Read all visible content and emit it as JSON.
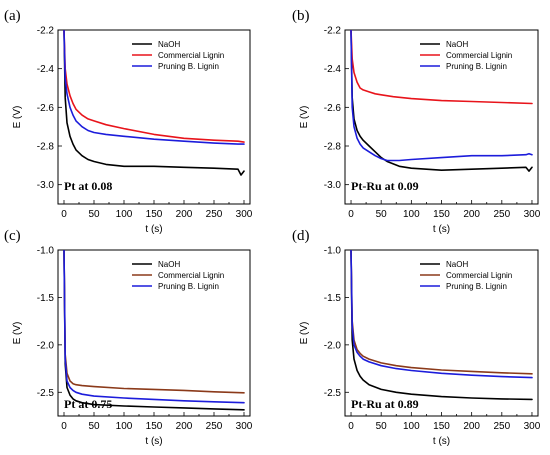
{
  "colors": {
    "NaOH": "#000000",
    "Commercial Lignin": "#e8141b",
    "Pruning B. Lignin": "#1c1cdb",
    "Commercial Lignin (c,d)": "#8b3a1a"
  },
  "chart_data": [
    {
      "panel": "(a)",
      "type": "line",
      "annotation": "Pt at 0.08",
      "xlabel": "t (s)",
      "ylabel": "E (V)",
      "xlim": [
        -10,
        310
      ],
      "ylim": [
        -3.1,
        -2.2
      ],
      "xticks": [
        0,
        50,
        100,
        150,
        200,
        250,
        300
      ],
      "yticks": [
        -3.0,
        -2.8,
        -2.6,
        -2.4,
        -2.2
      ],
      "ytick_labels": [
        "-3.0",
        "-2.8",
        "-2.6",
        "-2.4",
        "-2.2"
      ],
      "legend_position": "top-right",
      "series": [
        {
          "name": "NaOH",
          "color": "#000000",
          "x": [
            0,
            2,
            5,
            10,
            15,
            20,
            30,
            40,
            50,
            70,
            100,
            150,
            200,
            250,
            290,
            295,
            300
          ],
          "y": [
            -2.2,
            -2.55,
            -2.68,
            -2.75,
            -2.79,
            -2.82,
            -2.85,
            -2.87,
            -2.88,
            -2.895,
            -2.905,
            -2.905,
            -2.91,
            -2.915,
            -2.92,
            -2.95,
            -2.93
          ]
        },
        {
          "name": "Commercial Lignin",
          "color": "#e8141b",
          "x": [
            0,
            2,
            5,
            10,
            15,
            20,
            30,
            40,
            50,
            70,
            100,
            150,
            200,
            250,
            290,
            300
          ],
          "y": [
            -2.2,
            -2.4,
            -2.48,
            -2.54,
            -2.58,
            -2.61,
            -2.64,
            -2.66,
            -2.67,
            -2.69,
            -2.71,
            -2.74,
            -2.76,
            -2.77,
            -2.775,
            -2.78
          ]
        },
        {
          "name": "Pruning B. Lignin",
          "color": "#1c1cdb",
          "x": [
            0,
            2,
            5,
            10,
            15,
            20,
            30,
            40,
            50,
            70,
            100,
            150,
            200,
            250,
            290,
            300
          ],
          "y": [
            -2.2,
            -2.45,
            -2.53,
            -2.6,
            -2.64,
            -2.67,
            -2.7,
            -2.72,
            -2.73,
            -2.74,
            -2.75,
            -2.765,
            -2.775,
            -2.785,
            -2.79,
            -2.79
          ]
        }
      ]
    },
    {
      "panel": "(b)",
      "type": "line",
      "annotation": "Pt-Ru at 0.09",
      "xlabel": "t (s)",
      "ylabel": "E (V)",
      "xlim": [
        -10,
        310
      ],
      "ylim": [
        -3.1,
        -2.2
      ],
      "xticks": [
        0,
        50,
        100,
        150,
        200,
        250,
        300
      ],
      "yticks": [
        -3.0,
        -2.8,
        -2.6,
        -2.4,
        -2.2
      ],
      "ytick_labels": [
        "-3.0",
        "-2.8",
        "-2.6",
        "-2.4",
        "-2.2"
      ],
      "legend_position": "top-right",
      "series": [
        {
          "name": "NaOH",
          "color": "#000000",
          "x": [
            0,
            2,
            5,
            10,
            15,
            20,
            30,
            40,
            50,
            60,
            80,
            100,
            150,
            200,
            250,
            290,
            295,
            300
          ],
          "y": [
            -2.2,
            -2.55,
            -2.66,
            -2.72,
            -2.75,
            -2.77,
            -2.8,
            -2.83,
            -2.86,
            -2.88,
            -2.905,
            -2.915,
            -2.925,
            -2.92,
            -2.915,
            -2.91,
            -2.93,
            -2.91
          ]
        },
        {
          "name": "Commercial Lignin",
          "color": "#e8141b",
          "x": [
            0,
            2,
            5,
            10,
            15,
            20,
            30,
            40,
            50,
            70,
            100,
            150,
            200,
            250,
            300
          ],
          "y": [
            -2.2,
            -2.35,
            -2.42,
            -2.47,
            -2.5,
            -2.51,
            -2.52,
            -2.53,
            -2.535,
            -2.545,
            -2.555,
            -2.565,
            -2.57,
            -2.575,
            -2.58
          ]
        },
        {
          "name": "Pruning B. Lignin",
          "color": "#1c1cdb",
          "x": [
            0,
            2,
            5,
            10,
            15,
            20,
            30,
            40,
            50,
            60,
            80,
            100,
            150,
            200,
            250,
            290,
            295,
            300
          ],
          "y": [
            -2.2,
            -2.6,
            -2.7,
            -2.76,
            -2.79,
            -2.81,
            -2.83,
            -2.85,
            -2.865,
            -2.875,
            -2.875,
            -2.87,
            -2.86,
            -2.85,
            -2.85,
            -2.845,
            -2.84,
            -2.845
          ]
        }
      ]
    },
    {
      "panel": "(c)",
      "type": "line",
      "annotation": "Pt at 0.75",
      "xlabel": "t (s)",
      "ylabel": "E (V)",
      "xlim": [
        -10,
        310
      ],
      "ylim": [
        -2.75,
        -1.0
      ],
      "xticks": [
        0,
        50,
        100,
        150,
        200,
        250,
        300
      ],
      "yticks": [
        -2.5,
        -2.0,
        -1.5,
        -1.0
      ],
      "ytick_labels": [
        "-2.5",
        "-2.0",
        "-1.5",
        "-1.0"
      ],
      "legend_position": "top-right",
      "series": [
        {
          "name": "NaOH",
          "color": "#000000",
          "x": [
            0,
            2,
            5,
            10,
            15,
            20,
            30,
            50,
            100,
            150,
            200,
            250,
            300
          ],
          "y": [
            -1.0,
            -2.2,
            -2.45,
            -2.53,
            -2.57,
            -2.59,
            -2.61,
            -2.63,
            -2.645,
            -2.655,
            -2.665,
            -2.675,
            -2.685
          ]
        },
        {
          "name": "Commercial Lignin",
          "color": "#8b3a1a",
          "x": [
            0,
            2,
            5,
            10,
            15,
            20,
            30,
            50,
            100,
            150,
            200,
            250,
            300
          ],
          "y": [
            -1.0,
            -2.1,
            -2.3,
            -2.38,
            -2.41,
            -2.42,
            -2.43,
            -2.44,
            -2.46,
            -2.47,
            -2.48,
            -2.495,
            -2.505
          ]
        },
        {
          "name": "Pruning B. Lignin",
          "color": "#1c1cdb",
          "x": [
            0,
            2,
            5,
            10,
            15,
            20,
            30,
            50,
            100,
            150,
            200,
            250,
            300
          ],
          "y": [
            -1.0,
            -2.15,
            -2.38,
            -2.45,
            -2.48,
            -2.5,
            -2.52,
            -2.54,
            -2.56,
            -2.575,
            -2.59,
            -2.6,
            -2.61
          ]
        }
      ]
    },
    {
      "panel": "(d)",
      "type": "line",
      "annotation": "Pt-Ru at 0.89",
      "xlabel": "t (s)",
      "ylabel": "E (V)",
      "xlim": [
        -10,
        310
      ],
      "ylim": [
        -2.75,
        -1.0
      ],
      "xticks": [
        0,
        50,
        100,
        150,
        200,
        250,
        300
      ],
      "yticks": [
        -2.5,
        -2.0,
        -1.5,
        -1.0
      ],
      "ytick_labels": [
        "-2.5",
        "-2.0",
        "-1.5",
        "-1.0"
      ],
      "legend_position": "top-right",
      "series": [
        {
          "name": "NaOH",
          "color": "#000000",
          "x": [
            0,
            2,
            5,
            10,
            15,
            20,
            30,
            50,
            75,
            100,
            150,
            200,
            250,
            300
          ],
          "y": [
            -1.0,
            -1.95,
            -2.15,
            -2.27,
            -2.33,
            -2.37,
            -2.42,
            -2.47,
            -2.5,
            -2.52,
            -2.545,
            -2.56,
            -2.57,
            -2.575
          ]
        },
        {
          "name": "Commercial Lignin",
          "color": "#8b3a1a",
          "x": [
            0,
            2,
            5,
            10,
            15,
            20,
            30,
            50,
            75,
            100,
            150,
            200,
            250,
            300
          ],
          "y": [
            -1.0,
            -1.75,
            -1.95,
            -2.05,
            -2.09,
            -2.12,
            -2.15,
            -2.19,
            -2.22,
            -2.24,
            -2.265,
            -2.28,
            -2.295,
            -2.305
          ]
        },
        {
          "name": "Pruning B. Lignin",
          "color": "#1c1cdb",
          "x": [
            0,
            2,
            5,
            10,
            15,
            20,
            30,
            50,
            75,
            100,
            150,
            200,
            250,
            300
          ],
          "y": [
            -1.0,
            -1.8,
            -2.0,
            -2.08,
            -2.12,
            -2.15,
            -2.18,
            -2.22,
            -2.25,
            -2.27,
            -2.3,
            -2.32,
            -2.335,
            -2.345
          ]
        }
      ]
    }
  ]
}
